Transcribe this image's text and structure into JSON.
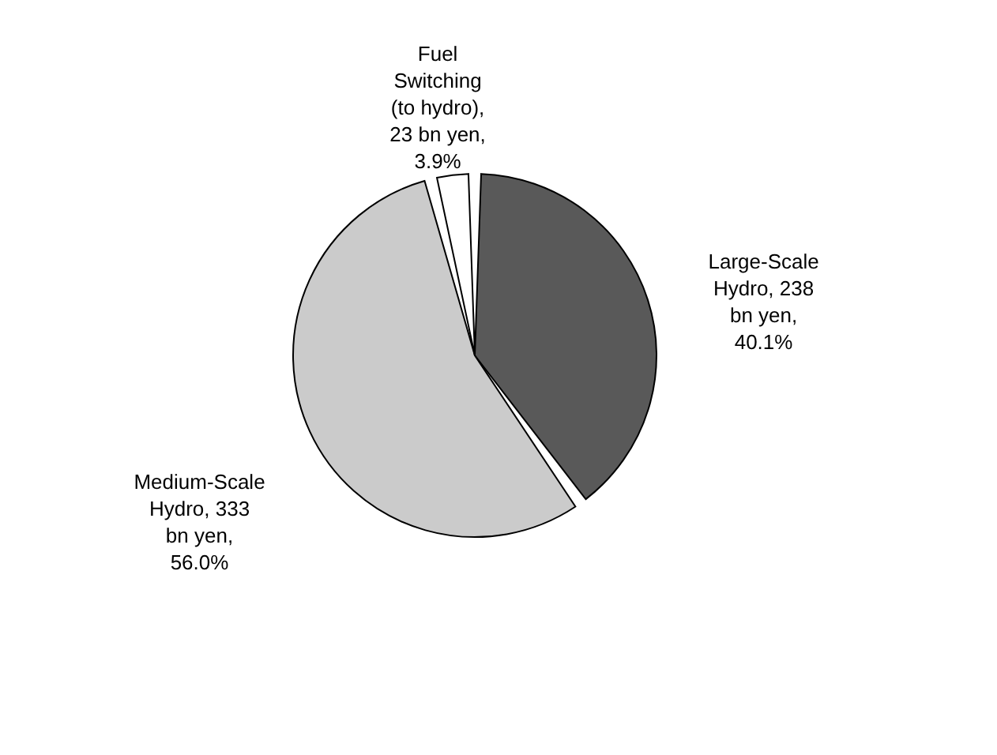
{
  "chart_data": {
    "type": "pie",
    "categories": [
      "Large-Scale Hydro, 238 bn yen, 40.1%",
      "Medium-Scale Hydro, 333 bn yen, 56.0%",
      "Fuel Switching (to hydro), 23 bn yen, 3.9%"
    ],
    "values": [
      40.1,
      56.0,
      3.9
    ],
    "colors": [
      "#595959",
      "#cbcbcb",
      "#ffffff"
    ],
    "legend": false
  }
}
